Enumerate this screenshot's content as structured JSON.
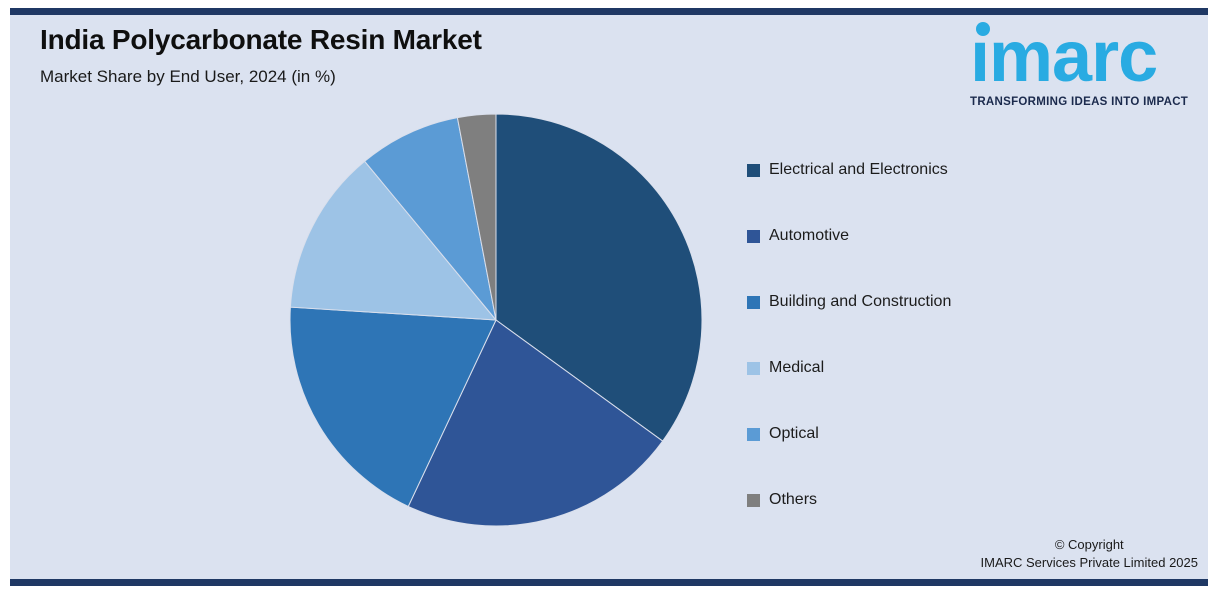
{
  "page": {
    "background_color": "#ffffff",
    "card_background_color": "#dbe2f0",
    "accent_bar_color": "#1f3864"
  },
  "header": {
    "title": "India Polycarbonate Resin Market",
    "subtitle": "Market Share by End User, 2024 (in %)"
  },
  "logo": {
    "wordmark": "ımarc",
    "tagline": "TRANSFORMING IDEAS INTO IMPACT",
    "brand_color": "#29abe2",
    "tagline_color": "#1b2a4d"
  },
  "footer": {
    "copyright_line1": "© Copyright",
    "copyright_line2": "IMARC Services Private Limited 2025"
  },
  "chart_data": {
    "type": "pie",
    "title": "India Polycarbonate Resin Market",
    "subtitle": "Market Share by End User, 2024 (in %)",
    "unit": "%",
    "start_angle_deg": 0,
    "direction": "clockwise",
    "legend_position": "right",
    "categories": [
      "Electrical and Electronics",
      "Automotive",
      "Building and Construction",
      "Medical",
      "Optical",
      "Others"
    ],
    "values": [
      35,
      22,
      19,
      13,
      8,
      3
    ],
    "colors": [
      "#1F4E79",
      "#2F5597",
      "#2E75B6",
      "#9DC3E6",
      "#5B9BD5",
      "#7F7F7F"
    ],
    "slice_separator_color": "#d9dfec"
  }
}
